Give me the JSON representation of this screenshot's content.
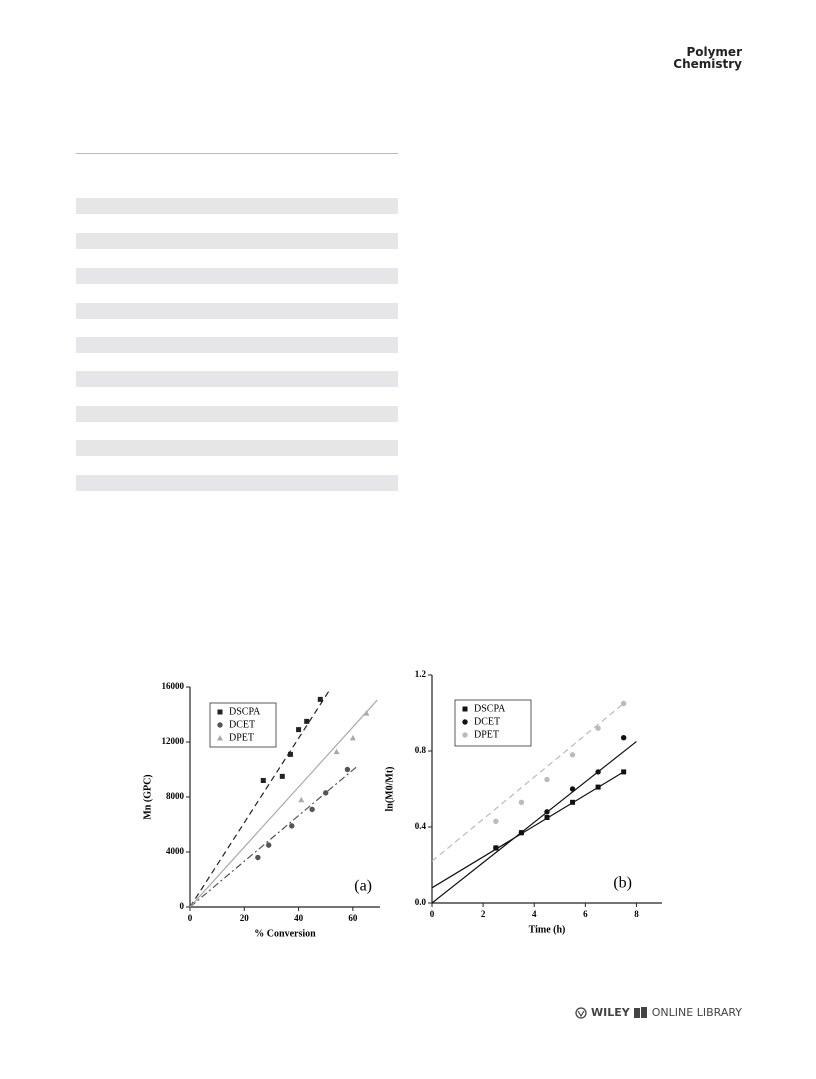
{
  "header": {
    "journal": [
      "Polymer",
      "Chemistry"
    ]
  },
  "footer": {
    "brand": "WILEY",
    "text": "ONLINE LIBRARY"
  },
  "chart_data": [
    {
      "type": "scatter",
      "annotation": "(a)",
      "x_label": "% Conversion",
      "y_label": "Mn (GPC)",
      "xlim": [
        0,
        70
      ],
      "xticks": [
        0,
        20,
        40,
        60
      ],
      "ylim": [
        0,
        16000
      ],
      "yticks": [
        0,
        4000,
        8000,
        12000,
        16000
      ],
      "series": [
        {
          "name": "DSCPA",
          "color": "#222222",
          "marker": "square",
          "dash": "dashed",
          "x": [
            27,
            34,
            37,
            40,
            43,
            48
          ],
          "values": [
            9200,
            9500,
            11100,
            12900,
            13500,
            15100
          ],
          "fit_x": [
            0,
            51.5
          ],
          "fit_y": [
            0,
            15800
          ]
        },
        {
          "name": "DCET",
          "color": "#555555",
          "marker": "circle",
          "dash": "dashdot",
          "x": [
            25,
            29,
            37.5,
            45,
            50,
            58
          ],
          "values": [
            3600,
            4500,
            5900,
            7100,
            8300,
            10000
          ],
          "fit_x": [
            0,
            62
          ],
          "fit_y": [
            0,
            10300
          ]
        },
        {
          "name": "DPET",
          "color": "#aaaaaa",
          "marker": "triangle",
          "dash": "solid",
          "x": [
            41,
            54,
            60,
            65
          ],
          "values": [
            7800,
            11300,
            12300,
            14100
          ],
          "fit_x": [
            0,
            69
          ],
          "fit_y": [
            0,
            15050
          ]
        }
      ]
    },
    {
      "type": "scatter",
      "annotation": "(b)",
      "x_label": "Time (h)",
      "y_label": "ln(M0/Mt)",
      "xlim": [
        0,
        9
      ],
      "xticks": [
        0,
        2,
        4,
        6,
        8
      ],
      "ylim": [
        0,
        1.2
      ],
      "yticks": [
        {
          "value": 0,
          "label": "0.0"
        },
        0.4,
        0.8,
        1.2
      ],
      "series": [
        {
          "name": "DSCPA",
          "color": "#111111",
          "marker": "square",
          "dash": "solid",
          "x": [
            2.5,
            3.5,
            4.5,
            5.5,
            6.5,
            7.5
          ],
          "values": [
            0.29,
            0.37,
            0.45,
            0.53,
            0.61,
            0.69
          ],
          "fit_x": [
            0,
            7.5
          ],
          "fit_y": [
            0.08,
            0.69
          ]
        },
        {
          "name": "DCET",
          "color": "#111111",
          "marker": "circle",
          "dash": "solid",
          "x": [
            2.5,
            3.5,
            4.5,
            5.5,
            6.5,
            7.5
          ],
          "values": [
            0.29,
            0.37,
            0.48,
            0.6,
            0.69,
            0.87
          ],
          "fit_x": [
            0,
            8
          ],
          "fit_y": [
            0,
            0.85
          ]
        },
        {
          "name": "DPET",
          "color": "#bbbbbb",
          "marker": "circle",
          "dash": "dashed",
          "x": [
            2.5,
            3.5,
            4.5,
            5.5,
            6.5,
            7.5
          ],
          "values": [
            0.43,
            0.53,
            0.65,
            0.78,
            0.92,
            1.05
          ],
          "fit_x": [
            0,
            7.5
          ],
          "fit_y": [
            0.22,
            1.05
          ]
        }
      ]
    }
  ]
}
